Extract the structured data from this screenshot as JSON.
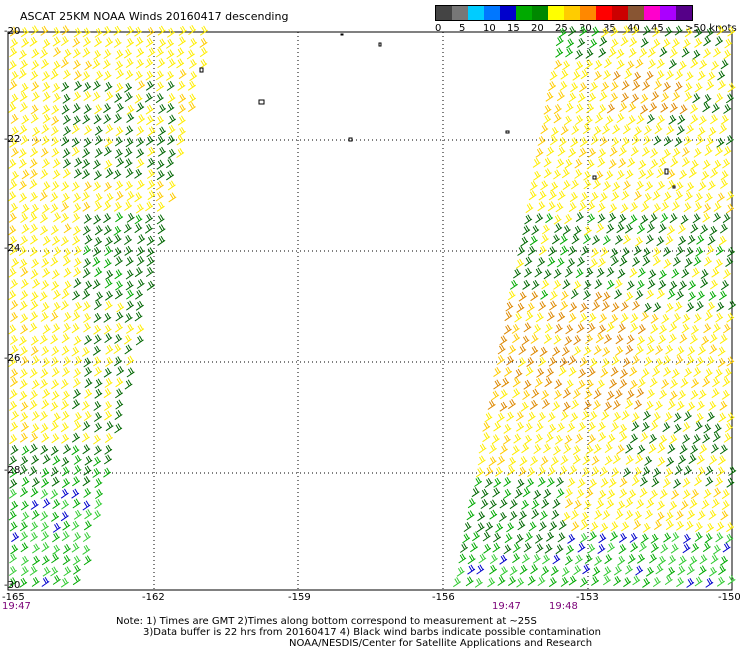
{
  "title": "ASCAT 25KM NOAA Winds 20160417 descending",
  "legend": {
    "colors": [
      "#444444",
      "#777777",
      "#00ccff",
      "#0077ff",
      "#0000cc",
      "#00aa00",
      "#008800",
      "#ffff00",
      "#ffcc00",
      "#ff8800",
      "#ff0000",
      "#cc0000",
      "#885533",
      "#ff00cc",
      "#aa00ff",
      "#550088"
    ],
    "labels": [
      "0",
      "5",
      "10",
      "15",
      "20",
      "25",
      "30",
      "35",
      "40",
      "45",
      ">50 knots"
    ]
  },
  "map": {
    "lat_labels": [
      "-20",
      "-22",
      "-24",
      "-26",
      "-28",
      "-30"
    ],
    "lon_labels": [
      "-165",
      "-162",
      "-159",
      "-156",
      "-153",
      "-150"
    ],
    "time_labels": [
      "19:47",
      "19:47",
      "19:48"
    ]
  },
  "wind_colors": {
    "dark_green": "#006600",
    "green": "#00aa00",
    "light_green": "#33cc33",
    "yellow": "#ffee00",
    "gold": "#ffcc00",
    "orange": "#dd8800",
    "blue": "#0000cc",
    "black": "#000000"
  },
  "notes": {
    "line1": "Note: 1) Times are GMT 2)Times along bottom correspond to measurement at ~25S",
    "line2": "3)Data buffer is 22 hrs from 20160417 4) Black wind barbs indicate possible contamination",
    "line3": "NOAA/NESDIS/Center for Satellite Applications and Research"
  }
}
